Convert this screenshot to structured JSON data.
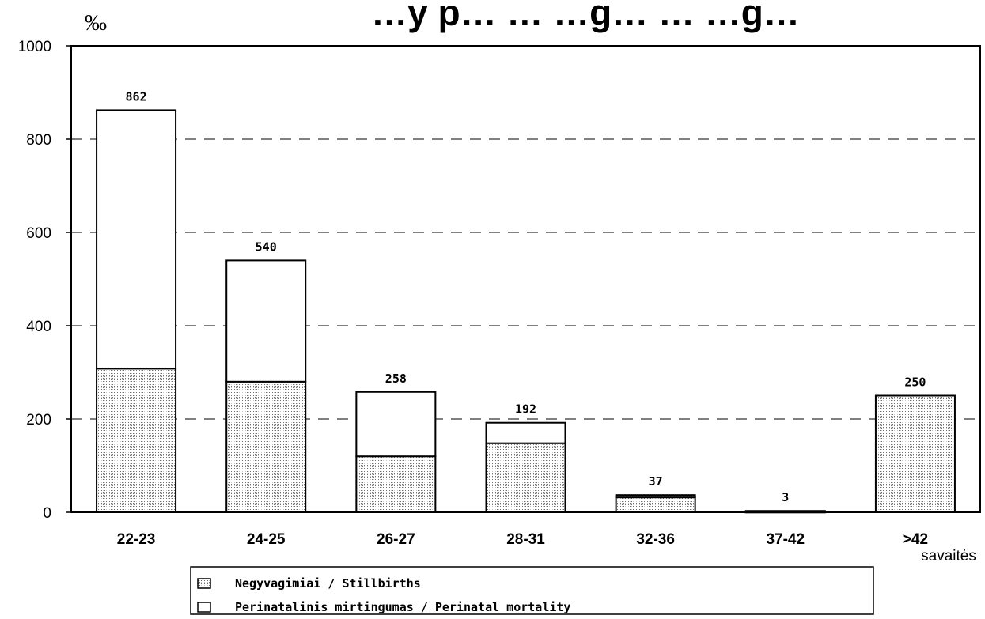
{
  "chart_data": {
    "type": "bar",
    "stacked": true,
    "title": "…y p… … …g… … …g…",
    "ylabel": "‰",
    "xlabel": "savaitės",
    "ylim": [
      0,
      1000
    ],
    "yticks": [
      0,
      200,
      400,
      600,
      800,
      1000
    ],
    "grid": "horizontal-dashed",
    "categories": [
      "22-23",
      "24-25",
      "26-27",
      "28-31",
      "32-36",
      "37-42",
      ">42"
    ],
    "totals": [
      862,
      540,
      258,
      192,
      37,
      3,
      250
    ],
    "series": [
      {
        "name": "Negyvagimiai / Stillbirths",
        "values": [
          308,
          280,
          120,
          148,
          32,
          2,
          250
        ],
        "pattern": "dotted"
      },
      {
        "name": "Perinatalinis mirtingumas / Perinatal mortality",
        "values": [
          554,
          260,
          138,
          44,
          5,
          1,
          0
        ],
        "pattern": "white"
      }
    ],
    "legend_position": "bottom"
  }
}
